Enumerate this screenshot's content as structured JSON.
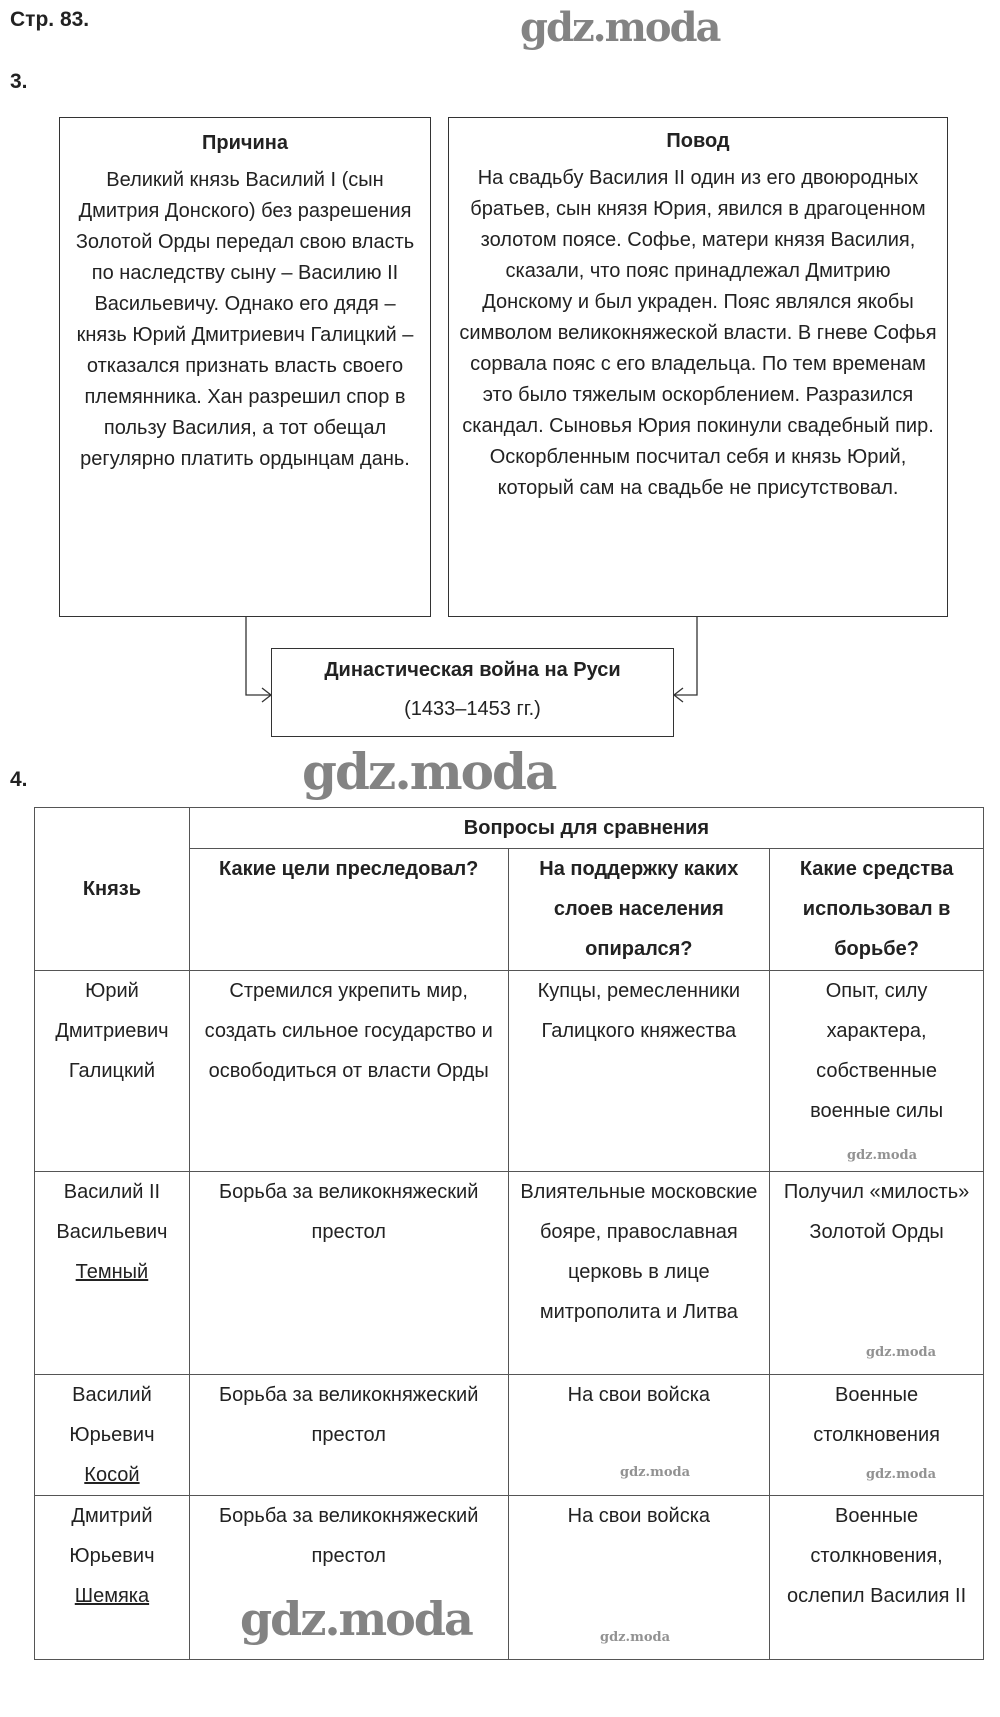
{
  "page_label": "Стр. 83.",
  "task3": {
    "number": "3.",
    "cause": {
      "title": "Причина",
      "text": "Великий князь Василий I (сын Дмитрия Донского) без разрешения Золотой Орды передал свою власть по наследству сыну – Василию II Васильевичу. Однако его дядя – князь Юрий Дмитриевич Галицкий – отказался признать власть своего племянника. Хан разрешил спор в пользу Василия, а тот обещал регулярно платить ордынцам дань."
    },
    "occasion": {
      "title": "Повод",
      "text": "На свадьбу Василия II один из его двоюродных братьев, сын князя Юрия, явился в драгоценном золотом поясе. Софье, матери князя Василия, сказали, что пояс принадлежал Дмитрию Донскому и был украден. Пояс являлся якобы символом великокняжеской власти. В гневе Софья сорвала пояс с его владельца. По тем временам это было тяжелым оскорблением. Разразился скандал. Сыновья Юрия покинули свадебный пир. Оскорбленным посчитал себя и князь Юрий, который сам на свадьбе не присутствовал."
    },
    "result": {
      "title": "Династическая война на Руси",
      "years": "(1433–1453 гг.)"
    }
  },
  "task4": {
    "number": "4.",
    "headers": {
      "prince": "Князь",
      "group": "Вопросы для сравнения",
      "goals": "Какие цели преследовал?",
      "support": "На поддержку каких слоев населения опирался?",
      "means": "Какие средства использовал в борьбе?"
    },
    "rows": [
      {
        "name": "Юрий Дмитриевич",
        "nickname": "Галицкий",
        "nickname_underlined": false,
        "goals": "Стремился укрепить мир, создать сильное государство и освободиться от власти Орды",
        "support": "Купцы, ремесленники Галицкого княжества",
        "means": "Опыт, силу характера, собственные военные силы"
      },
      {
        "name": "Василий II Васильевич",
        "nickname": "Темный",
        "nickname_underlined": true,
        "goals": "Борьба за великокняжеский престол",
        "support": "Влиятельные московские бояре, православная церковь в лице митрополита и Литва",
        "means": "Получил «милость» Золотой Орды"
      },
      {
        "name": "Василий Юрьевич",
        "nickname": "Косой",
        "nickname_underlined": true,
        "goals": "Борьба за великокняжеский престол",
        "support": "На свои войска",
        "means": "Военные столкновения"
      },
      {
        "name": "Дмитрий Юрьевич",
        "nickname": "Шемяка",
        "nickname_underlined": true,
        "goals": "Борьба за великокняжеский престол",
        "support": "На свои войска",
        "means": "Военные столкновения, ослепил Василия II"
      }
    ]
  },
  "watermark": "gdz.moda"
}
